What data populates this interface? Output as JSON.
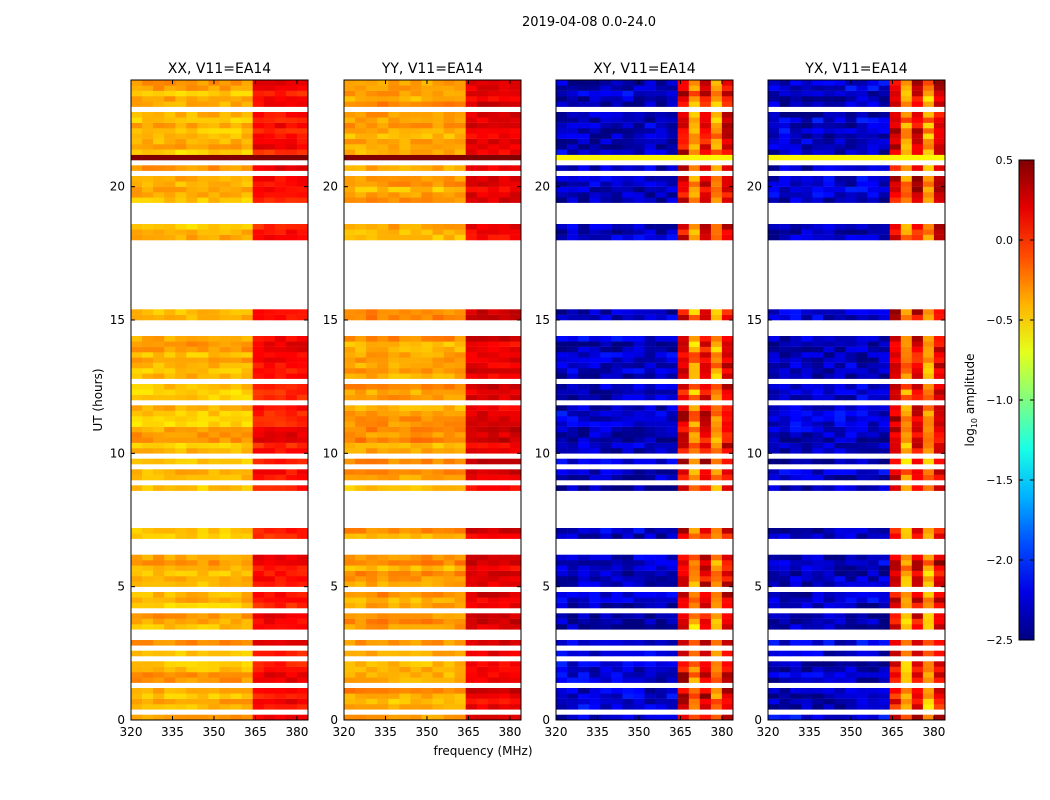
{
  "chart_data": {
    "type": "heatmap",
    "title": "2019-04-08 0.0-24.0",
    "xlabel": "frequency (MHz)",
    "ylabel": "UT (hours)",
    "xlim": [
      320,
      384
    ],
    "ylim": [
      0,
      24
    ],
    "xticks": [
      320,
      335,
      350,
      365,
      380
    ],
    "yticks": [
      0,
      5,
      10,
      15,
      20
    ],
    "panels": [
      {
        "title": "XX, V11=EA14",
        "base_level": -0.4,
        "band_level": 0.1
      },
      {
        "title": "YY, V11=EA14",
        "base_level": -0.35,
        "band_level": 0.2
      },
      {
        "title": "XY, V11=EA14",
        "base_level": -2.3,
        "band_level": -0.3
      },
      {
        "title": "YX, V11=EA14",
        "base_level": -2.3,
        "band_level": -0.3
      }
    ],
    "band_MHz": [
      363,
      382
    ],
    "data_coverage_hours": [
      [
        0,
        7.2
      ],
      [
        8.5,
        8.8
      ],
      [
        9.0,
        14.3
      ],
      [
        14.7,
        15.3
      ],
      [
        17.8,
        18.5
      ],
      [
        19.3,
        20.6
      ],
      [
        20.7,
        23.8
      ],
      [
        23.85,
        24
      ]
    ],
    "colorbar": {
      "label": "log10 amplitude",
      "label_main": "log",
      "label_sub": "10",
      "label_rest": " amplitude",
      "range": [
        -2.5,
        0.5
      ],
      "ticks": [
        "0.5",
        "0.0",
        "−0.5",
        "−1.0",
        "−1.5",
        "−2.0",
        "−2.5"
      ],
      "tick_values": [
        0.5,
        0.0,
        -0.5,
        -1.0,
        -1.5,
        -2.0,
        -2.5
      ],
      "colormap": "jet"
    }
  }
}
